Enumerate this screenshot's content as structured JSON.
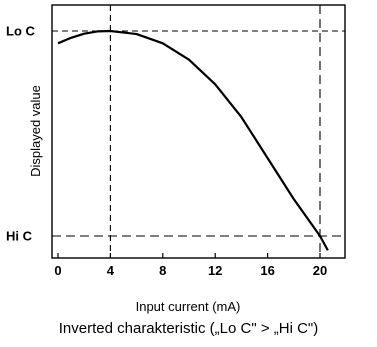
{
  "chart_data": {
    "type": "line",
    "caption": "Inverted charakteristic („Lo C\" > „Hi C\")",
    "xlabel": "Input current (mA)",
    "ylabel": "Displayed value",
    "x_ticks": [
      "0",
      "4",
      "8",
      "12",
      "16",
      "20"
    ],
    "y_ticks": [
      "Lo C",
      "Hi C"
    ],
    "xlim": [
      0,
      21.5
    ],
    "ylim": [
      0,
      1
    ],
    "grid": false,
    "series": [
      {
        "x": [
          0,
          1,
          2,
          3,
          4,
          6,
          8,
          10,
          12,
          14,
          16,
          18,
          20,
          20.6
        ],
        "y": [
          0.94,
          0.967,
          0.987,
          0.998,
          1.0,
          0.985,
          0.94,
          0.86,
          0.74,
          0.58,
          0.38,
          0.18,
          0.0,
          -0.07
        ]
      }
    ],
    "reference_lines": [
      {
        "orientation": "vertical",
        "x": 4
      },
      {
        "orientation": "vertical",
        "x": 20
      },
      {
        "orientation": "horizontal",
        "y": 1
      },
      {
        "orientation": "horizontal",
        "y": 0
      }
    ]
  }
}
